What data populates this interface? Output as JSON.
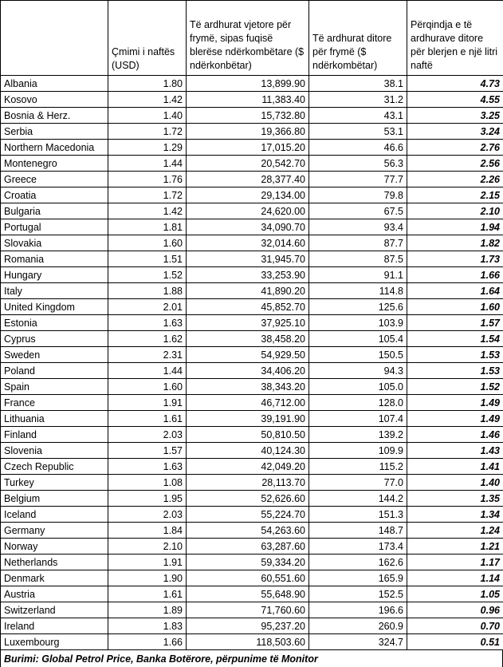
{
  "table": {
    "headers": [
      "Çmimi i naftës (USD)",
      "Të ardhurat vjetore për frymë, sipas fuqisë blerëse ndërkombëtare ($ ndërkonbëtar)",
      "Të ardhurat ditore për frymë ($ ndërkombëtar)",
      "Përqindja e të ardhurave ditore për blerjen e një litri naftë"
    ],
    "rows": [
      [
        "Albania",
        "1.80",
        "13,899.90",
        "38.1",
        "4.73"
      ],
      [
        "Kosovo",
        "1.42",
        "11,383.40",
        "31.2",
        "4.55"
      ],
      [
        "Bosnia & Herz.",
        "1.40",
        "15,732.80",
        "43.1",
        "3.25"
      ],
      [
        "Serbia",
        "1.72",
        "19,366.80",
        "53.1",
        "3.24"
      ],
      [
        "Northern Macedonia",
        "1.29",
        "17,015.20",
        "46.6",
        "2.76"
      ],
      [
        "Montenegro",
        "1.44",
        "20,542.70",
        "56.3",
        "2.56"
      ],
      [
        "Greece",
        "1.76",
        "28,377.40",
        "77.7",
        "2.26"
      ],
      [
        "Croatia",
        "1.72",
        "29,134.00",
        "79.8",
        "2.15"
      ],
      [
        "Bulgaria",
        "1.42",
        "24,620.00",
        "67.5",
        "2.10"
      ],
      [
        "Portugal",
        "1.81",
        "34,090.70",
        "93.4",
        "1.94"
      ],
      [
        "Slovakia",
        "1.60",
        "32,014.60",
        "87.7",
        "1.82"
      ],
      [
        "Romania",
        "1.51",
        "31,945.70",
        "87.5",
        "1.73"
      ],
      [
        "Hungary",
        "1.52",
        "33,253.90",
        "91.1",
        "1.66"
      ],
      [
        "Italy",
        "1.88",
        "41,890.20",
        "114.8",
        "1.64"
      ],
      [
        "United Kingdom",
        "2.01",
        "45,852.70",
        "125.6",
        "1.60"
      ],
      [
        "Estonia",
        "1.63",
        "37,925.10",
        "103.9",
        "1.57"
      ],
      [
        "Cyprus",
        "1.62",
        "38,458.20",
        "105.4",
        "1.54"
      ],
      [
        "Sweden",
        "2.31",
        "54,929.50",
        "150.5",
        "1.53"
      ],
      [
        "Poland",
        "1.44",
        "34,406.20",
        "94.3",
        "1.53"
      ],
      [
        "Spain",
        "1.60",
        "38,343.20",
        "105.0",
        "1.52"
      ],
      [
        "France",
        "1.91",
        "46,712.00",
        "128.0",
        "1.49"
      ],
      [
        "Lithuania",
        "1.61",
        "39,191.90",
        "107.4",
        "1.49"
      ],
      [
        "Finland",
        "2.03",
        "50,810.50",
        "139.2",
        "1.46"
      ],
      [
        "Slovenia",
        "1.57",
        "40,124.30",
        "109.9",
        "1.43"
      ],
      [
        "Czech Republic",
        "1.63",
        "42,049.20",
        "115.2",
        "1.41"
      ],
      [
        "Turkey",
        "1.08",
        "28,113.70",
        "77.0",
        "1.40"
      ],
      [
        "Belgium",
        "1.95",
        "52,626.60",
        "144.2",
        "1.35"
      ],
      [
        "Iceland",
        "2.03",
        "55,224.70",
        "151.3",
        "1.34"
      ],
      [
        "Germany",
        "1.84",
        "54,263.60",
        "148.7",
        "1.24"
      ],
      [
        "Norway",
        "2.10",
        "63,287.60",
        "173.4",
        "1.21"
      ],
      [
        "Netherlands",
        "1.91",
        "59,334.20",
        "162.6",
        "1.17"
      ],
      [
        "Denmark",
        "1.90",
        "60,551.60",
        "165.9",
        "1.14"
      ],
      [
        "Austria",
        "1.61",
        "55,648.90",
        "152.5",
        "1.05"
      ],
      [
        "Switzerland",
        "1.89",
        "71,760.60",
        "196.6",
        "0.96"
      ],
      [
        "Ireland",
        "1.83",
        "95,237.20",
        "260.9",
        "0.70"
      ],
      [
        "Luxembourg",
        "1.66",
        "118,503.60",
        "324.7",
        "0.51"
      ]
    ],
    "source": "Burimi: Global Petrol Price, Banka Botërore, përpunime të Monitor"
  }
}
